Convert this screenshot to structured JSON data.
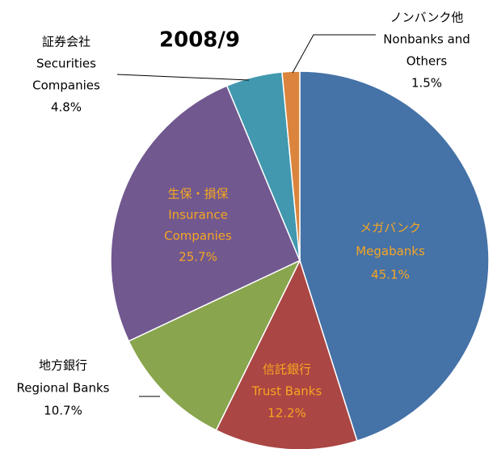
{
  "chart_data": {
    "type": "pie",
    "title": "2008/9",
    "categories": [
      [
        "メガバンク",
        "Megabanks"
      ],
      [
        "信託銀行",
        "Trust Banks"
      ],
      [
        "地方銀行",
        "Regional Banks"
      ],
      [
        "生保・損保",
        "Insurance",
        "Companies"
      ],
      [
        "証券会社",
        "Securities",
        "Companies"
      ],
      [
        "ノンバンク他",
        "Nonbanks and",
        "Others"
      ]
    ],
    "values": [
      45.1,
      12.2,
      10.7,
      25.7,
      4.8,
      1.5
    ],
    "value_labels": [
      "45.1%",
      "12.2%",
      "10.7%",
      "25.7%",
      "4.8%",
      "1.5%"
    ],
    "colors": [
      "#4572a7",
      "#aa4643",
      "#89a54e",
      "#71588f",
      "#4198af",
      "#db843d"
    ],
    "label_colors": [
      "#f5a623",
      "#f5a623",
      "#000000",
      "#f5a623",
      "#000000",
      "#000000"
    ]
  }
}
